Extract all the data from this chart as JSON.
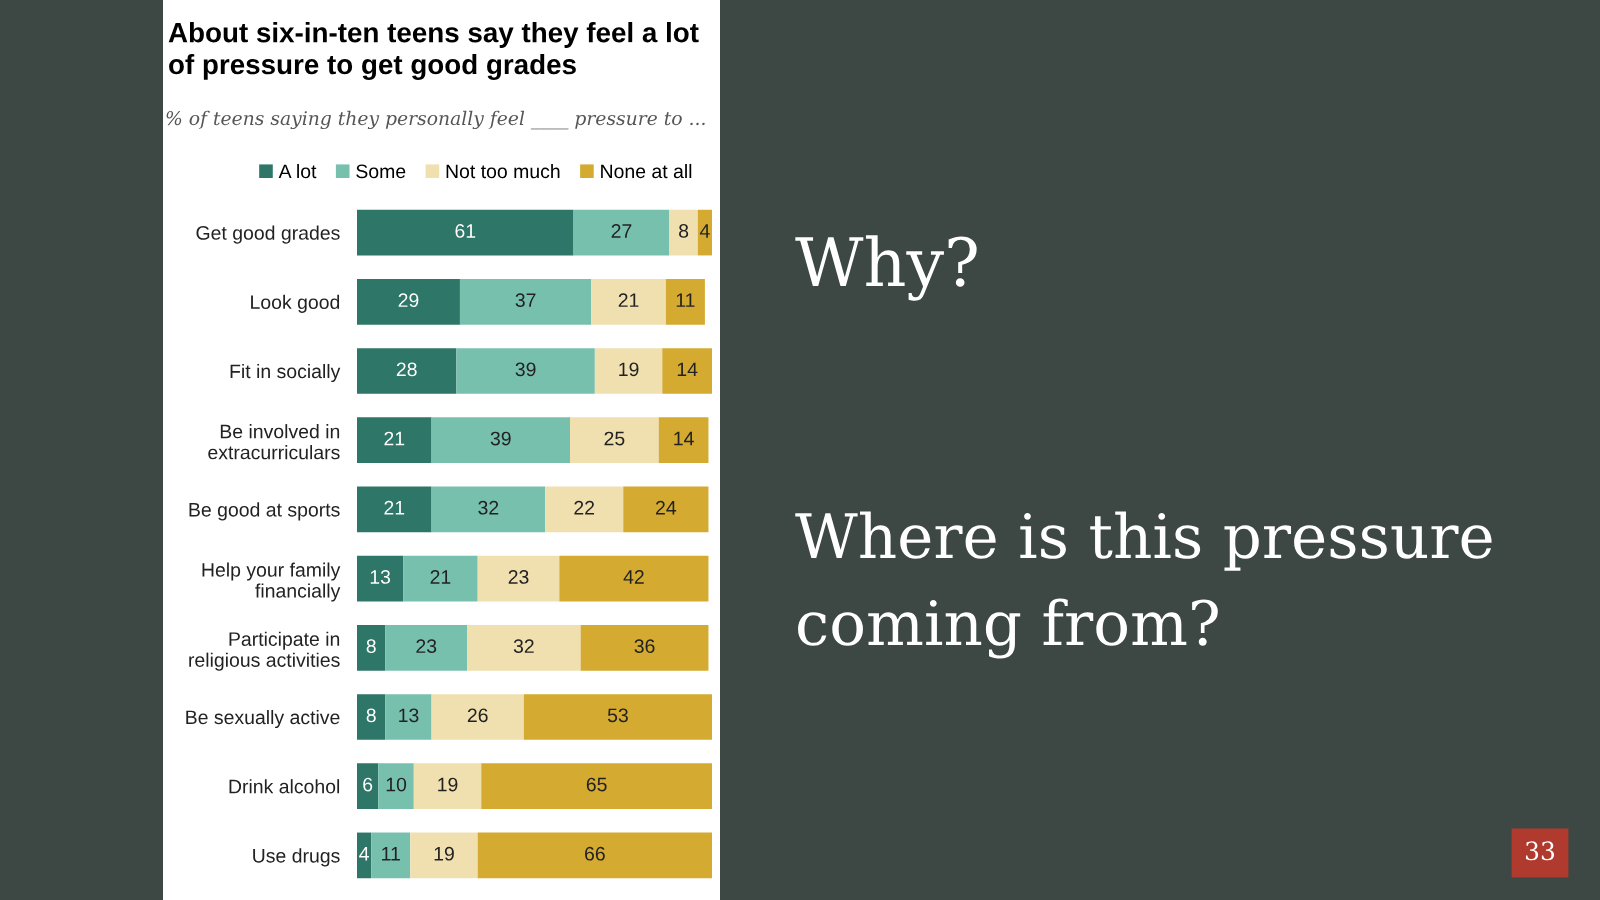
{
  "chart_data": {
    "type": "bar",
    "orientation": "horizontal",
    "stacked": true,
    "data_labels": true,
    "legend": "top",
    "grid": false,
    "title": "About six-in-ten teens say they feel a lot\nof pressure to get good grades",
    "subtitle": "% of teens saying they personally feel ____ pressure to ...",
    "categories": [
      "Get good grades",
      "Look good",
      "Fit in socially",
      "Be involved in\nextracurriculars",
      "Be good at sports",
      "Help your family\nfinancially",
      "Participate in\nreligious activities",
      "Be sexually active",
      "Drink alcohol",
      "Use drugs"
    ],
    "series": [
      {
        "name": "A lot",
        "color": "#2e7667",
        "values": [
          61,
          29,
          28,
          21,
          21,
          13,
          8,
          8,
          6,
          4
        ]
      },
      {
        "name": "Some",
        "color": "#78c0ae",
        "values": [
          27,
          37,
          39,
          39,
          32,
          21,
          23,
          13,
          10,
          11
        ]
      },
      {
        "name": "Not too much",
        "color": "#f0e0b0",
        "values": [
          8,
          21,
          19,
          25,
          22,
          23,
          32,
          26,
          19,
          19
        ]
      },
      {
        "name": "None at all",
        "color": "#d4aa30",
        "values": [
          4,
          11,
          14,
          14,
          24,
          42,
          36,
          53,
          65,
          66
        ]
      }
    ],
    "annotations": [
      "Why?",
      "Where is this pressure\ncoming from?",
      "33"
    ]
  }
}
